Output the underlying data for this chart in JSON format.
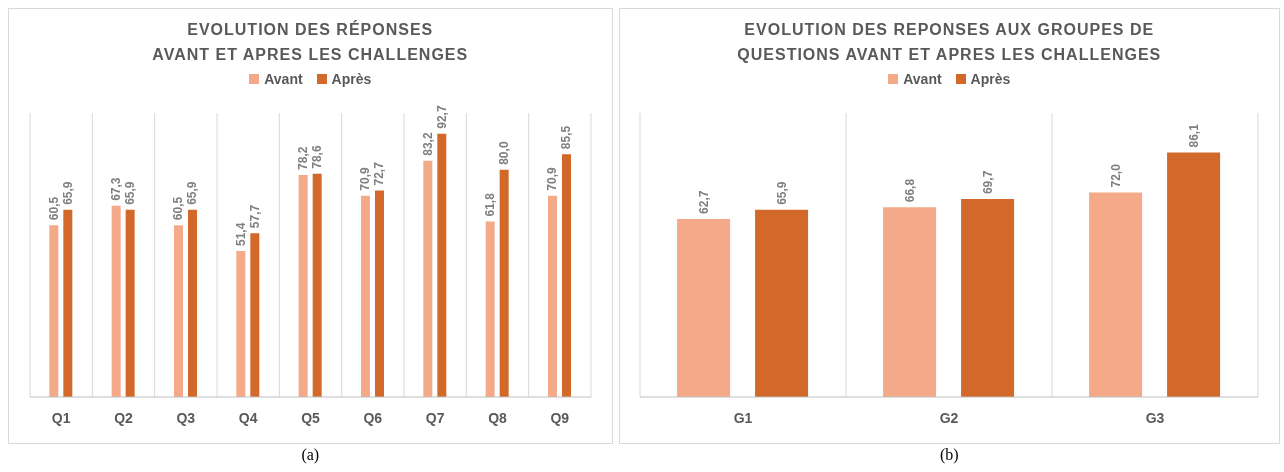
{
  "chart_data": [
    {
      "type": "bar",
      "title": "EVOLUTION DES RÉPONSES\nAVANT ET APRES LES CHALLENGES",
      "categories": [
        "Q1",
        "Q2",
        "Q3",
        "Q4",
        "Q5",
        "Q6",
        "Q7",
        "Q8",
        "Q9"
      ],
      "series": [
        {
          "name": "Avant",
          "color": "#f4a988",
          "values": [
            60.5,
            67.3,
            60.5,
            51.4,
            78.2,
            70.9,
            83.2,
            61.8,
            70.9
          ],
          "value_labels": [
            "60,5",
            "67,3",
            "60,5",
            "51,4",
            "78,2",
            "70,9",
            "83,2",
            "61,8",
            "70,9"
          ]
        },
        {
          "name": "Après",
          "color": "#d2692a",
          "values": [
            65.9,
            65.9,
            65.9,
            57.7,
            78.6,
            72.7,
            92.7,
            80.0,
            85.5
          ],
          "value_labels": [
            "65,9",
            "65,9",
            "65,9",
            "57,7",
            "78,6",
            "72,7",
            "92,7",
            "80,0",
            "85,5"
          ]
        }
      ],
      "ylim": [
        0,
        100
      ],
      "grid": "x",
      "legend": "top",
      "tick_labels": "x",
      "annotations": [
        "(a)"
      ]
    },
    {
      "type": "bar",
      "title": "EVOLUTION DES REPONSES AUX GROUPES DE\nQUESTIONS AVANT ET APRES LES CHALLENGES",
      "categories": [
        "G1",
        "G2",
        "G3"
      ],
      "series": [
        {
          "name": "Avant",
          "color": "#f4a988",
          "values": [
            62.7,
            66.8,
            72.0
          ],
          "value_labels": [
            "62,7",
            "66,8",
            "72,0"
          ]
        },
        {
          "name": "Après",
          "color": "#d2692a",
          "values": [
            65.9,
            69.7,
            86.1
          ],
          "value_labels": [
            "65,9",
            "69,7",
            "86,1"
          ]
        }
      ],
      "ylim": [
        0,
        100
      ],
      "grid": "x",
      "legend": "top",
      "tick_labels": "x",
      "annotations": [
        "(b)"
      ]
    }
  ]
}
